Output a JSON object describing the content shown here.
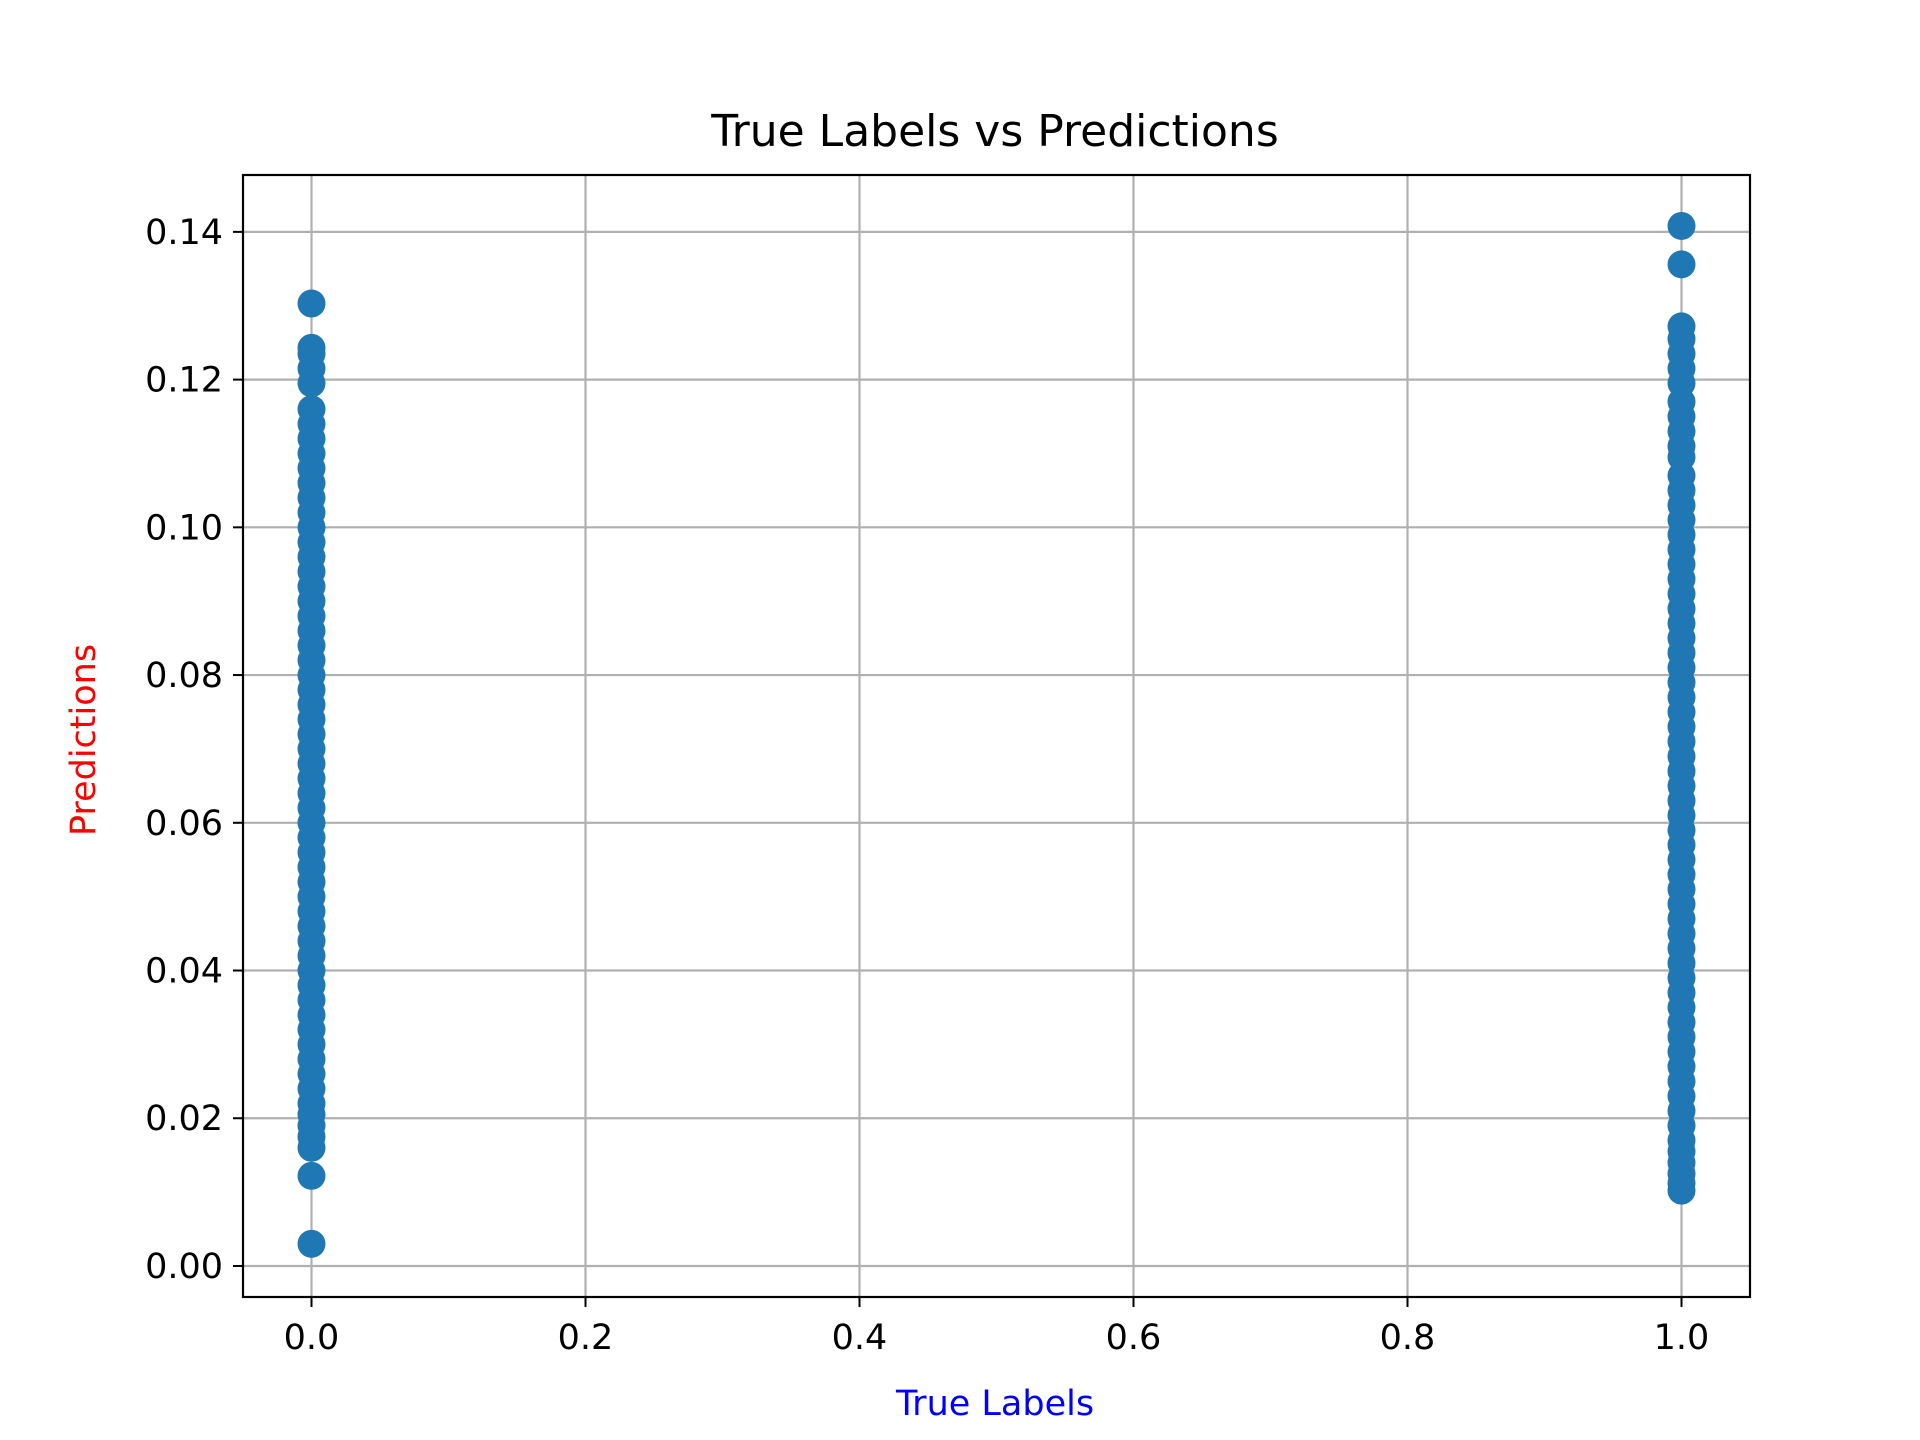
{
  "chart_data": {
    "type": "scatter",
    "title": "True Labels vs Predictions",
    "xlabel": "True Labels",
    "ylabel": "Predictions",
    "xlabel_color": "#0000ff",
    "ylabel_color": "#ff0000",
    "marker_color": "#1f77b4",
    "xlim": [
      -0.05,
      1.05
    ],
    "ylim": [
      -0.0042,
      0.1477
    ],
    "xticks": [
      0.0,
      0.2,
      0.4,
      0.6,
      0.8,
      1.0
    ],
    "xtick_labels": [
      "0.0",
      "0.2",
      "0.4",
      "0.6",
      "0.8",
      "1.0"
    ],
    "yticks": [
      0.0,
      0.02,
      0.04,
      0.06,
      0.08,
      0.1,
      0.12,
      0.14
    ],
    "ytick_labels": [
      "0.00",
      "0.02",
      "0.04",
      "0.06",
      "0.08",
      "0.10",
      "0.12",
      "0.14"
    ],
    "grid": true,
    "series": [
      {
        "x_value": 0.0,
        "y": [
          0.003,
          0.0122,
          0.016,
          0.0175,
          0.019,
          0.0205,
          0.022,
          0.024,
          0.026,
          0.028,
          0.03,
          0.032,
          0.034,
          0.036,
          0.038,
          0.04,
          0.042,
          0.044,
          0.046,
          0.048,
          0.05,
          0.052,
          0.054,
          0.056,
          0.058,
          0.06,
          0.062,
          0.064,
          0.066,
          0.068,
          0.07,
          0.072,
          0.074,
          0.076,
          0.078,
          0.08,
          0.082,
          0.084,
          0.086,
          0.088,
          0.09,
          0.092,
          0.094,
          0.096,
          0.098,
          0.1,
          0.102,
          0.104,
          0.106,
          0.108,
          0.11,
          0.112,
          0.114,
          0.116,
          0.1195,
          0.1215,
          0.1235,
          0.1243,
          0.1303
        ]
      },
      {
        "x_value": 1.0,
        "y": [
          0.0102,
          0.0112,
          0.0125,
          0.014,
          0.0155,
          0.017,
          0.019,
          0.021,
          0.023,
          0.025,
          0.027,
          0.029,
          0.031,
          0.033,
          0.035,
          0.037,
          0.039,
          0.041,
          0.043,
          0.045,
          0.047,
          0.049,
          0.051,
          0.053,
          0.055,
          0.057,
          0.059,
          0.061,
          0.063,
          0.065,
          0.067,
          0.069,
          0.071,
          0.073,
          0.075,
          0.077,
          0.079,
          0.081,
          0.083,
          0.085,
          0.087,
          0.089,
          0.091,
          0.093,
          0.095,
          0.097,
          0.099,
          0.101,
          0.103,
          0.105,
          0.107,
          0.1095,
          0.111,
          0.113,
          0.115,
          0.117,
          0.1195,
          0.1215,
          0.1235,
          0.1255,
          0.1272,
          0.1356,
          0.1408
        ]
      }
    ]
  }
}
